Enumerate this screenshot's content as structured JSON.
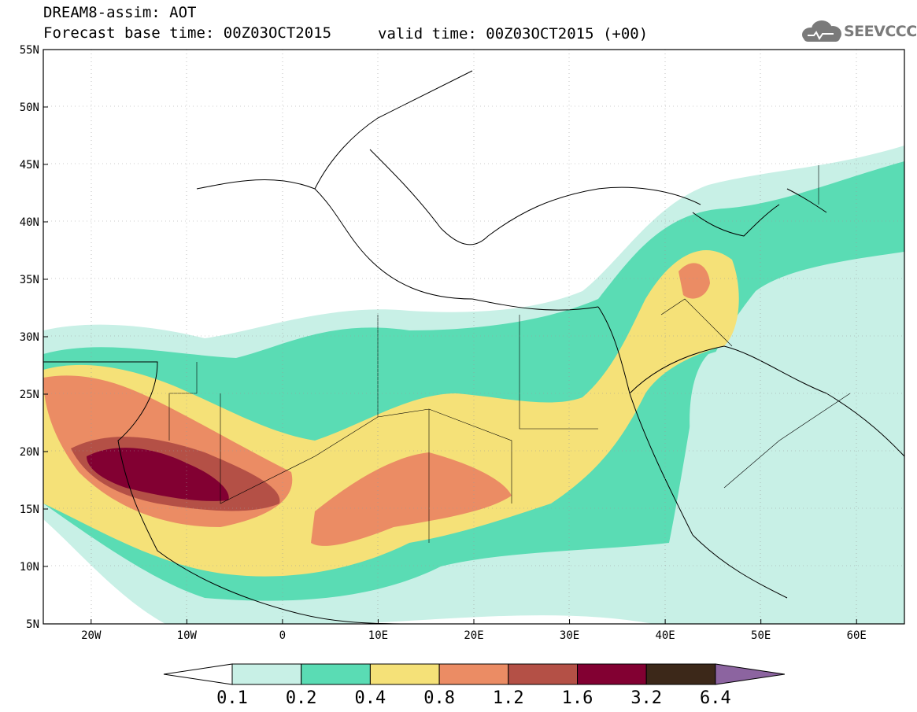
{
  "header": {
    "line1": "DREAM8-assim: AOT",
    "line2": "Forecast base time: 00Z03OCT2015",
    "valid": "valid time: 00Z03OCT2015 (+00)"
  },
  "logo": {
    "text": "SEEVCCC",
    "icon": "cloud-icon",
    "color": "#7a7a7a"
  },
  "map": {
    "lat_labels": [
      "55N",
      "50N",
      "45N",
      "40N",
      "35N",
      "30N",
      "25N",
      "20N",
      "15N",
      "10N",
      "5N"
    ],
    "lon_labels": [
      "20W",
      "10W",
      "0",
      "10E",
      "20E",
      "30E",
      "40E",
      "50E",
      "60E"
    ],
    "extent": {
      "lon": [
        -25,
        65
      ],
      "lat": [
        5,
        55
      ]
    }
  },
  "legend": {
    "labels": [
      "0.1",
      "0.2",
      "0.4",
      "0.8",
      "1.2",
      "1.6",
      "3.2",
      "6.4"
    ],
    "colors": [
      "#c8f0e6",
      "#5adcb4",
      "#f5e178",
      "#eb8c64",
      "#b45046",
      "#820032",
      "#3c2819",
      "#8c64a0"
    ]
  }
}
